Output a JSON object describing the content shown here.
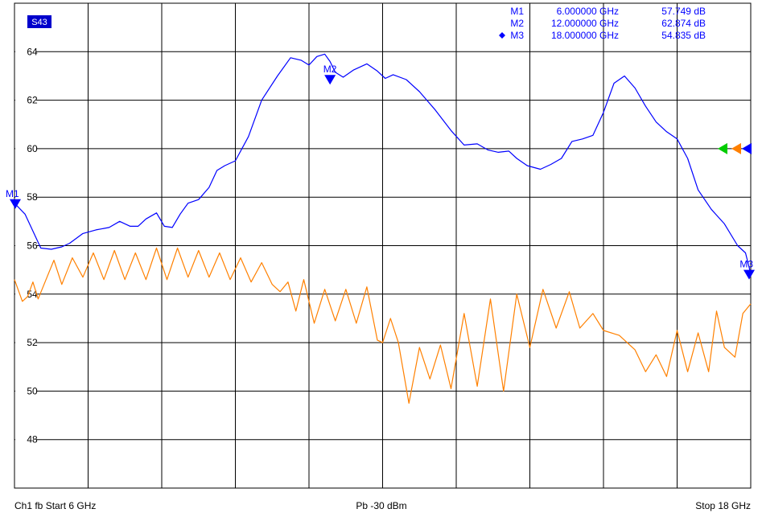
{
  "chart_data": {
    "type": "line",
    "trace_label": "S43",
    "x": {
      "start_ghz": 6,
      "stop_ghz": 18
    },
    "ylim": [
      46,
      66
    ],
    "yticks": [
      48,
      50,
      52,
      54,
      56,
      58,
      60,
      62,
      64
    ],
    "grid": true,
    "series": [
      {
        "color": "#0000ff",
        "points": [
          [
            6.0,
            57.75
          ],
          [
            6.2,
            57.3
          ],
          [
            6.35,
            56.6
          ],
          [
            6.5,
            55.9
          ],
          [
            6.7,
            55.85
          ],
          [
            6.9,
            55.95
          ],
          [
            7.05,
            56.1
          ],
          [
            7.3,
            56.5
          ],
          [
            7.55,
            56.65
          ],
          [
            7.8,
            56.75
          ],
          [
            8.0,
            57.0
          ],
          [
            8.2,
            56.8
          ],
          [
            8.35,
            56.8
          ],
          [
            8.5,
            57.1
          ],
          [
            8.7,
            57.35
          ],
          [
            8.85,
            56.8
          ],
          [
            9.0,
            56.75
          ],
          [
            9.15,
            57.3
          ],
          [
            9.3,
            57.75
          ],
          [
            9.5,
            57.9
          ],
          [
            9.7,
            58.4
          ],
          [
            9.85,
            59.1
          ],
          [
            10.0,
            59.3
          ],
          [
            10.2,
            59.5
          ],
          [
            10.45,
            60.5
          ],
          [
            10.7,
            62.0
          ],
          [
            11.0,
            63.0
          ],
          [
            11.25,
            63.75
          ],
          [
            11.45,
            63.65
          ],
          [
            11.6,
            63.45
          ],
          [
            11.75,
            63.8
          ],
          [
            11.9,
            63.9
          ],
          [
            12.0,
            63.6
          ],
          [
            12.1,
            63.15
          ],
          [
            12.25,
            62.95
          ],
          [
            12.45,
            63.25
          ],
          [
            12.7,
            63.5
          ],
          [
            12.9,
            63.2
          ],
          [
            13.05,
            62.9
          ],
          [
            13.2,
            63.05
          ],
          [
            13.45,
            62.85
          ],
          [
            13.7,
            62.35
          ],
          [
            14.0,
            61.6
          ],
          [
            14.3,
            60.75
          ],
          [
            14.55,
            60.15
          ],
          [
            14.8,
            60.2
          ],
          [
            15.0,
            59.95
          ],
          [
            15.2,
            59.85
          ],
          [
            15.4,
            59.9
          ],
          [
            15.55,
            59.6
          ],
          [
            15.75,
            59.3
          ],
          [
            16.0,
            59.15
          ],
          [
            16.2,
            59.35
          ],
          [
            16.4,
            59.6
          ],
          [
            16.6,
            60.3
          ],
          [
            16.8,
            60.4
          ],
          [
            17.0,
            60.55
          ],
          [
            17.2,
            61.5
          ],
          [
            17.4,
            62.7
          ],
          [
            17.6,
            63.0
          ],
          [
            17.8,
            62.5
          ],
          [
            18.0,
            61.75
          ],
          [
            18.2,
            61.1
          ],
          [
            18.4,
            60.7
          ],
          [
            18.6,
            60.4
          ],
          [
            18.8,
            59.6
          ],
          [
            19.0,
            58.3
          ],
          [
            19.25,
            57.5
          ],
          [
            19.5,
            56.9
          ],
          [
            19.75,
            56.0
          ],
          [
            19.9,
            55.7
          ],
          [
            20.0,
            54.84
          ]
        ],
        "markers": [
          {
            "label": "M1",
            "freq": "6.000000 GHz",
            "value": "57.749 dB",
            "x": 6.0,
            "y": 57.749,
            "active": false
          },
          {
            "label": "M2",
            "freq": "12.000000 GHz",
            "value": "62.874 dB",
            "x": 12.0,
            "y": 62.874,
            "active": false
          },
          {
            "label": "M3",
            "freq": "18.000000 GHz",
            "value": "54.835 dB",
            "x": 20.0,
            "y": 54.835,
            "active": true
          }
        ]
      },
      {
        "color": "#ff8000",
        "points": [
          [
            6.0,
            54.6
          ],
          [
            6.15,
            53.7
          ],
          [
            6.25,
            53.9
          ],
          [
            6.35,
            54.5
          ],
          [
            6.45,
            53.8
          ],
          [
            6.6,
            54.6
          ],
          [
            6.75,
            55.4
          ],
          [
            6.9,
            54.4
          ],
          [
            7.1,
            55.5
          ],
          [
            7.3,
            54.7
          ],
          [
            7.5,
            55.7
          ],
          [
            7.7,
            54.6
          ],
          [
            7.9,
            55.8
          ],
          [
            8.1,
            54.6
          ],
          [
            8.3,
            55.7
          ],
          [
            8.5,
            54.6
          ],
          [
            8.7,
            55.9
          ],
          [
            8.9,
            54.6
          ],
          [
            9.1,
            55.9
          ],
          [
            9.3,
            54.7
          ],
          [
            9.5,
            55.8
          ],
          [
            9.7,
            54.7
          ],
          [
            9.9,
            55.7
          ],
          [
            10.1,
            54.6
          ],
          [
            10.3,
            55.5
          ],
          [
            10.5,
            54.5
          ],
          [
            10.7,
            55.3
          ],
          [
            10.9,
            54.4
          ],
          [
            11.05,
            54.1
          ],
          [
            11.2,
            54.5
          ],
          [
            11.35,
            53.3
          ],
          [
            11.5,
            54.6
          ],
          [
            11.7,
            52.8
          ],
          [
            11.9,
            54.2
          ],
          [
            12.1,
            52.9
          ],
          [
            12.3,
            54.2
          ],
          [
            12.5,
            52.8
          ],
          [
            12.7,
            54.3
          ],
          [
            12.9,
            52.1
          ],
          [
            13.0,
            52.0
          ],
          [
            13.15,
            53.0
          ],
          [
            13.3,
            52.0
          ],
          [
            13.5,
            49.5
          ],
          [
            13.7,
            51.8
          ],
          [
            13.9,
            50.5
          ],
          [
            14.1,
            51.9
          ],
          [
            14.3,
            50.1
          ],
          [
            14.55,
            53.2
          ],
          [
            14.8,
            50.2
          ],
          [
            15.05,
            53.8
          ],
          [
            15.3,
            50.0
          ],
          [
            15.55,
            54.0
          ],
          [
            15.8,
            51.8
          ],
          [
            16.05,
            54.2
          ],
          [
            16.3,
            52.6
          ],
          [
            16.55,
            54.1
          ],
          [
            16.75,
            52.6
          ],
          [
            17.0,
            53.2
          ],
          [
            17.2,
            52.5
          ],
          [
            17.5,
            52.3
          ],
          [
            17.8,
            51.7
          ],
          [
            18.0,
            50.8
          ],
          [
            18.2,
            51.5
          ],
          [
            18.4,
            50.6
          ],
          [
            18.6,
            52.5
          ],
          [
            18.8,
            50.8
          ],
          [
            19.0,
            52.4
          ],
          [
            19.2,
            50.8
          ],
          [
            19.35,
            53.3
          ],
          [
            19.5,
            51.8
          ],
          [
            19.7,
            51.4
          ],
          [
            19.85,
            53.2
          ],
          [
            20.0,
            53.6
          ]
        ]
      }
    ]
  },
  "markers_table": [
    {
      "label": "M1",
      "freq": "6.000000 GHz",
      "value": "57.749 dB",
      "active": false
    },
    {
      "label": "M2",
      "freq": "12.000000 GHz",
      "value": "62.874 dB",
      "active": false
    },
    {
      "label": "M3",
      "freq": "18.000000 GHz",
      "value": "54.835 dB",
      "active": true
    }
  ],
  "footer": {
    "left": "Ch1  fb  Start  6 GHz",
    "center": "Pb  -30 dBm",
    "right": "Stop  18 GHz"
  },
  "colors": {
    "trace1": "#0000ff",
    "trace2": "#ff8000",
    "ref_green": "#00cc00",
    "ref_orange": "#ff8000",
    "ref_blue": "#0000ff",
    "grid": "#000000",
    "background": "#ffffff"
  }
}
